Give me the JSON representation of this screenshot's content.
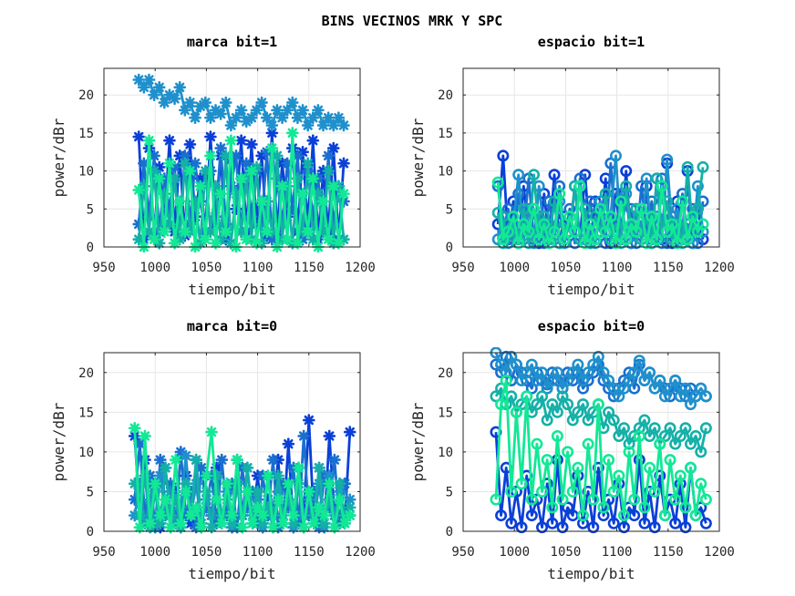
{
  "figure": {
    "title": "BINS VECINOS MRK Y SPC"
  },
  "chart_data": [
    {
      "type": "line",
      "title": "marca bit=1",
      "xlabel": "tiempo/bit",
      "ylabel": "power/dBr",
      "xlim": [
        950,
        1200
      ],
      "ylim": [
        0,
        23.5
      ],
      "xticks": [
        950,
        1000,
        1050,
        1100,
        1150,
        1200
      ],
      "yticks": [
        0,
        5,
        10,
        15,
        20
      ],
      "grid": true,
      "marker": "asterisk",
      "x": [
        984,
        989,
        994,
        999,
        1004,
        1009,
        1014,
        1019,
        1024,
        1029,
        1034,
        1039,
        1044,
        1049,
        1054,
        1059,
        1064,
        1069,
        1074,
        1079,
        1084,
        1089,
        1094,
        1099,
        1104,
        1109,
        1114,
        1119,
        1124,
        1129,
        1134,
        1139,
        1144,
        1149,
        1154,
        1159,
        1164,
        1169,
        1174,
        1179,
        1184
      ],
      "series": [
        {
          "color": "#0a3fd8",
          "values": [
            14.5,
            1,
            13,
            1.5,
            10.5,
            3,
            14,
            2,
            12,
            1.5,
            13.5,
            4,
            9,
            2,
            14.5,
            3,
            12,
            1,
            11.5,
            5,
            14,
            2,
            13.5,
            3,
            12,
            1.5,
            15,
            2,
            11,
            4,
            13,
            2,
            12.5,
            3,
            14,
            1,
            10,
            2,
            13,
            1,
            11
          ]
        },
        {
          "color": "#1a6fd0",
          "values": [
            3,
            11,
            4,
            12,
            2,
            9,
            5,
            10.5,
            1.5,
            12,
            3,
            11,
            6,
            2,
            10,
            4,
            13,
            3,
            8,
            12,
            2,
            11,
            4,
            10,
            3,
            12.5,
            1,
            9,
            3,
            11,
            5,
            12,
            1,
            10,
            4,
            9,
            2,
            12,
            3,
            8,
            6
          ]
        },
        {
          "color": "#1f90cc",
          "values": [
            22,
            21,
            22,
            20,
            21,
            19,
            20,
            19.5,
            21,
            18,
            19,
            17,
            18.5,
            19,
            17,
            18,
            17.5,
            19,
            16,
            17,
            18,
            16.5,
            17,
            18,
            19,
            17,
            16,
            18,
            17,
            18,
            19,
            17,
            18,
            16,
            17,
            18,
            16,
            17,
            16,
            17,
            16
          ]
        },
        {
          "color": "#14b0a8",
          "values": [
            1,
            8,
            2,
            10,
            0.5,
            7,
            3,
            9,
            1,
            11,
            2,
            6,
            0.5,
            10,
            2,
            8,
            1,
            12,
            0.5,
            7,
            2,
            9,
            1,
            10.5,
            0.5,
            6,
            2,
            12,
            1,
            8,
            0.5,
            9,
            2,
            11,
            1,
            7,
            2,
            10,
            0.5,
            8,
            1
          ]
        },
        {
          "color": "#12e896",
          "values": [
            7.5,
            0,
            14,
            1,
            9,
            2,
            11,
            0.5,
            6,
            2,
            10,
            0,
            8,
            1,
            12,
            0.5,
            7,
            2,
            14,
            0,
            9,
            1,
            10,
            0.5,
            6,
            2,
            13,
            0,
            8,
            1,
            15,
            0.5,
            7,
            2,
            9,
            0,
            6,
            1,
            8,
            0.5,
            7
          ]
        }
      ]
    },
    {
      "type": "line",
      "title": "espacio bit=1",
      "xlabel": "tiempo/bit",
      "ylabel": "power/dBr",
      "xlim": [
        950,
        1200
      ],
      "ylim": [
        0,
        23.5
      ],
      "xticks": [
        950,
        1000,
        1050,
        1100,
        1150,
        1200
      ],
      "yticks": [
        0,
        5,
        10,
        15,
        20
      ],
      "grid": true,
      "marker": "circle",
      "x": [
        984,
        989,
        994,
        999,
        1004,
        1009,
        1014,
        1019,
        1024,
        1029,
        1034,
        1039,
        1044,
        1049,
        1054,
        1059,
        1064,
        1069,
        1074,
        1079,
        1084,
        1089,
        1094,
        1099,
        1104,
        1109,
        1114,
        1119,
        1124,
        1129,
        1134,
        1139,
        1144,
        1149,
        1154,
        1159,
        1164,
        1169,
        1174,
        1179,
        1184
      ],
      "series": [
        {
          "color": "#0a3fd8",
          "values": [
            3,
            12,
            1,
            6,
            0.5,
            8,
            2,
            5,
            0.5,
            7,
            1,
            9.5,
            0.5,
            4,
            2,
            8,
            1,
            9.5,
            0.5,
            6,
            2,
            9,
            0.5,
            7,
            1,
            10,
            0.5,
            5,
            2,
            8,
            0.5,
            9,
            1,
            11,
            0.5,
            6,
            2,
            10,
            0.5,
            5,
            1
          ]
        },
        {
          "color": "#1a6fd0",
          "values": [
            8,
            2,
            5,
            1,
            7,
            2,
            9,
            1,
            4,
            0.5,
            6,
            2,
            8,
            1,
            5,
            0.5,
            9,
            2,
            6,
            1,
            4,
            0.5,
            11,
            2,
            7,
            1,
            5,
            0.5,
            8,
            2,
            6,
            1,
            9,
            0.5,
            4,
            2,
            7,
            1,
            5,
            0.5,
            6
          ]
        },
        {
          "color": "#1f90cc",
          "values": [
            1,
            4,
            0.5,
            3,
            9.5,
            1,
            5,
            0.5,
            8,
            2,
            3,
            1,
            6,
            0.5,
            4,
            2,
            8,
            1,
            3,
            0.5,
            6,
            2,
            4,
            12,
            1,
            7,
            0.5,
            3,
            2,
            9,
            1,
            4,
            0.5,
            11.5,
            2,
            5,
            1,
            3,
            0.5,
            8,
            2
          ]
        },
        {
          "color": "#14b0a8",
          "values": [
            4.5,
            0.5,
            3,
            2,
            1,
            5,
            0.5,
            9.5,
            2,
            4,
            1,
            6,
            0.5,
            3,
            2,
            8,
            1,
            5,
            0.5,
            4,
            2,
            7,
            1,
            3,
            0.5,
            8,
            2,
            5,
            1,
            4,
            0.5,
            9,
            2,
            6,
            1,
            3,
            0.5,
            10.5,
            2,
            5,
            10.5
          ]
        },
        {
          "color": "#12e896",
          "values": [
            8.5,
            1,
            2,
            4,
            0.5,
            3,
            2,
            5,
            1,
            3,
            0.5,
            2,
            7,
            1,
            4,
            2,
            8,
            0.5,
            3,
            1,
            5,
            2,
            4,
            0.5,
            6,
            1,
            3,
            2,
            5,
            0.5,
            4,
            1,
            8,
            2,
            3,
            0.5,
            6,
            1,
            4,
            2,
            3
          ]
        }
      ]
    },
    {
      "type": "line",
      "title": "marca bit=0",
      "xlabel": "tiempo/bit",
      "ylabel": "power/dBr",
      "xlim": [
        950,
        1200
      ],
      "ylim": [
        0,
        22.5
      ],
      "xticks": [
        950,
        1000,
        1050,
        1100,
        1150,
        1200
      ],
      "yticks": [
        0,
        5,
        10,
        15,
        20
      ],
      "grid": true,
      "marker": "asterisk",
      "x": [
        980,
        985,
        990,
        995,
        1000,
        1005,
        1010,
        1015,
        1020,
        1025,
        1030,
        1035,
        1040,
        1045,
        1050,
        1055,
        1060,
        1065,
        1070,
        1075,
        1080,
        1085,
        1090,
        1095,
        1100,
        1105,
        1110,
        1115,
        1120,
        1125,
        1130,
        1135,
        1140,
        1145,
        1150,
        1155,
        1160,
        1165,
        1170,
        1175,
        1180,
        1185,
        1190
      ],
      "series": [
        {
          "color": "#0a3fd8",
          "values": [
            12,
            2,
            9,
            1,
            6,
            0.5,
            8,
            2,
            5,
            0.5,
            7,
            1,
            9,
            0.5,
            4,
            2,
            8,
            1,
            6,
            0.5,
            9,
            2,
            5,
            1,
            7,
            0.5,
            4,
            2,
            9,
            1,
            11,
            0.5,
            6,
            2,
            14,
            1,
            8,
            0.5,
            12,
            2,
            6,
            1,
            12.5
          ]
        },
        {
          "color": "#1a6fd0",
          "values": [
            4,
            11,
            2,
            7,
            0.5,
            9,
            3,
            6,
            1,
            10,
            2,
            5,
            0.5,
            8,
            3,
            7,
            1,
            9,
            2,
            6,
            0.5,
            8,
            3,
            5,
            1,
            7,
            2,
            9,
            0.5,
            6,
            3,
            8,
            1,
            12,
            2,
            5,
            0.5,
            7,
            3,
            9,
            1,
            6,
            2
          ]
        },
        {
          "color": "#1f90cc",
          "values": [
            2,
            6,
            1,
            4,
            0.5,
            7,
            2,
            5,
            1,
            3,
            9.5,
            2,
            6,
            0.5,
            4,
            2,
            7,
            1,
            5,
            0.5,
            6,
            2,
            8,
            1,
            4,
            0.5,
            7,
            2,
            5,
            1,
            6,
            0.5,
            8,
            2,
            4,
            1,
            6,
            0.5,
            7,
            2,
            5,
            1,
            4
          ]
        },
        {
          "color": "#14b0a8",
          "values": [
            6,
            2,
            7,
            0.5,
            5,
            1,
            8,
            2,
            4,
            0.5,
            6,
            2,
            9,
            1,
            5,
            0.5,
            7,
            2,
            4,
            1,
            6,
            0.5,
            8,
            2,
            5,
            1,
            3,
            0.5,
            7,
            2,
            4,
            1,
            6,
            0.5,
            5,
            2,
            8,
            1,
            4,
            0.5,
            6,
            2,
            3
          ]
        },
        {
          "color": "#12e896",
          "values": [
            13,
            0.5,
            12,
            1,
            6,
            2,
            4,
            0.5,
            9,
            1,
            5,
            2,
            3,
            0.5,
            7,
            12.5,
            4,
            1,
            6,
            2,
            9,
            0.5,
            5,
            1,
            3,
            2,
            7,
            0.5,
            4,
            1,
            6,
            2,
            8,
            0.5,
            5,
            1,
            3,
            2,
            6,
            0.5,
            4,
            1,
            2
          ]
        }
      ]
    },
    {
      "type": "line",
      "title": "espacio bit=0",
      "xlabel": "tiempo/bit",
      "ylabel": "power/dBr",
      "xlim": [
        950,
        1200
      ],
      "ylim": [
        0,
        22.5
      ],
      "xticks": [
        950,
        1000,
        1050,
        1100,
        1150,
        1200
      ],
      "yticks": [
        0,
        5,
        10,
        15,
        20
      ],
      "grid": true,
      "marker": "circle",
      "x": [
        982,
        987,
        992,
        997,
        1002,
        1007,
        1012,
        1017,
        1022,
        1027,
        1032,
        1037,
        1042,
        1047,
        1052,
        1057,
        1062,
        1067,
        1072,
        1077,
        1082,
        1087,
        1092,
        1097,
        1102,
        1107,
        1112,
        1117,
        1122,
        1127,
        1132,
        1137,
        1142,
        1147,
        1152,
        1157,
        1162,
        1167,
        1172,
        1177,
        1182,
        1187
      ],
      "series": [
        {
          "color": "#0a3fd8",
          "values": [
            12.5,
            2,
            8,
            1,
            5,
            0.5,
            7,
            2,
            4,
            0.5,
            6,
            1,
            9,
            0.5,
            3,
            2,
            7,
            1,
            5,
            0.5,
            8,
            2,
            4,
            1,
            6,
            0.5,
            3,
            2,
            9,
            1,
            5,
            0.5,
            7,
            2,
            4,
            1,
            6,
            0.5,
            8,
            2,
            3,
            1
          ]
        },
        {
          "color": "#1a6fd0",
          "values": [
            21,
            20,
            22,
            19,
            21,
            20,
            19,
            18,
            20,
            19,
            18.5,
            20,
            19,
            18,
            20,
            19,
            20,
            18,
            19,
            20,
            21,
            19,
            18,
            17,
            18,
            19,
            20,
            18,
            21,
            19,
            20,
            18,
            19,
            18,
            17,
            19,
            18,
            17,
            18,
            17,
            18,
            17
          ]
        },
        {
          "color": "#1f90cc",
          "values": [
            22.5,
            21,
            20,
            22,
            21,
            19,
            20,
            21,
            19,
            20,
            18,
            19,
            20,
            18,
            19,
            20,
            21,
            19,
            20,
            21,
            22,
            20,
            19,
            18,
            17,
            18,
            19,
            20,
            21.5,
            19,
            20,
            18,
            19,
            17,
            18,
            19,
            17,
            18,
            16,
            17,
            18,
            17
          ]
        },
        {
          "color": "#14b0a8",
          "values": [
            17,
            18,
            16,
            17,
            15,
            16,
            17,
            15,
            16,
            17,
            14,
            16,
            15,
            17,
            16,
            14,
            15,
            16,
            14,
            15,
            16,
            13,
            15,
            14,
            12,
            13,
            11,
            12,
            13,
            14,
            12,
            13,
            11,
            12,
            13,
            11,
            12,
            13,
            11,
            12,
            10,
            13
          ]
        },
        {
          "color": "#12e896",
          "values": [
            4,
            16,
            19,
            5,
            15,
            6,
            17,
            4,
            11,
            5,
            9,
            3,
            12,
            4,
            10,
            5,
            8,
            2,
            11,
            4,
            16,
            3,
            9,
            5,
            7,
            2,
            10,
            4,
            12,
            3,
            8,
            5,
            11,
            2,
            9,
            4,
            7,
            3,
            8,
            2,
            6,
            4
          ]
        }
      ]
    }
  ]
}
